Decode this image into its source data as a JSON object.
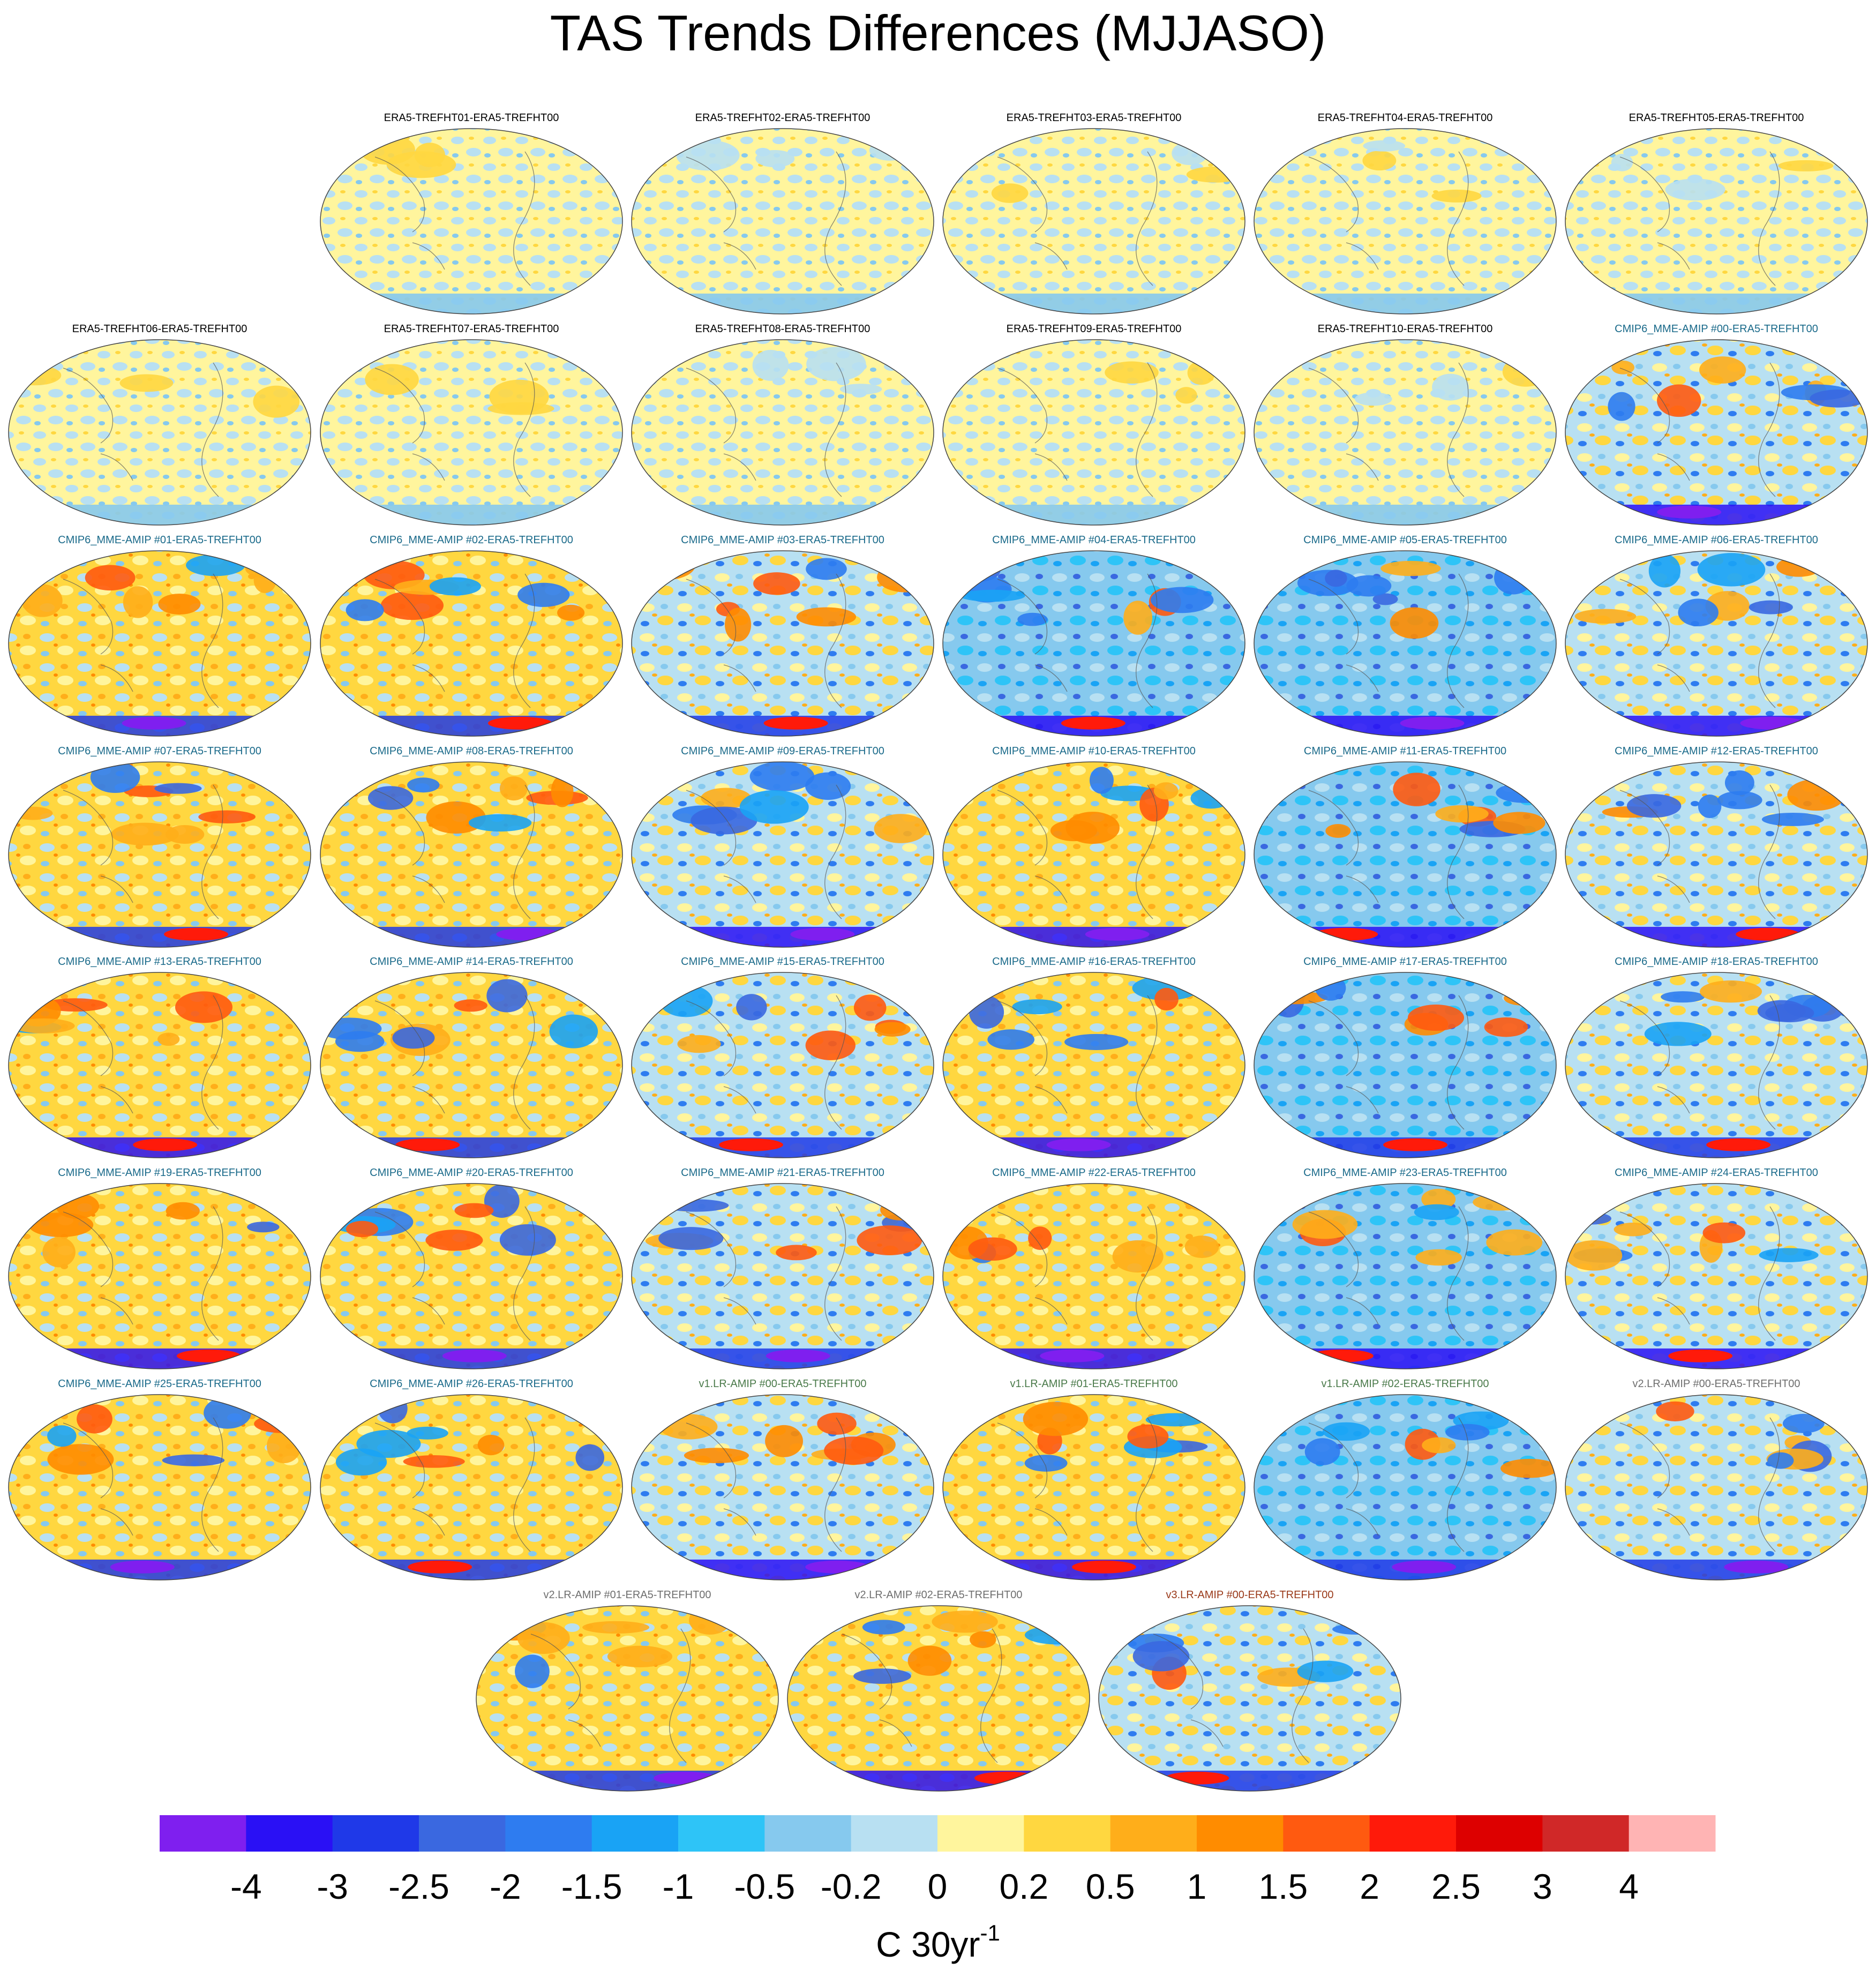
{
  "chart_data": {
    "type": "heatmap",
    "title": "TAS Trends Differences (MJJASO)",
    "panel_kind": "global-map",
    "panels": [
      {
        "title": "ERA5-TREFHT01-ERA5-TREFHT00",
        "group": "era5"
      },
      {
        "title": "ERA5-TREFHT02-ERA5-TREFHT00",
        "group": "era5"
      },
      {
        "title": "ERA5-TREFHT03-ERA5-TREFHT00",
        "group": "era5"
      },
      {
        "title": "ERA5-TREFHT04-ERA5-TREFHT00",
        "group": "era5"
      },
      {
        "title": "ERA5-TREFHT05-ERA5-TREFHT00",
        "group": "era5"
      },
      {
        "title": "ERA5-TREFHT06-ERA5-TREFHT00",
        "group": "era5"
      },
      {
        "title": "ERA5-TREFHT07-ERA5-TREFHT00",
        "group": "era5"
      },
      {
        "title": "ERA5-TREFHT08-ERA5-TREFHT00",
        "group": "era5"
      },
      {
        "title": "ERA5-TREFHT09-ERA5-TREFHT00",
        "group": "era5"
      },
      {
        "title": "ERA5-TREFHT10-ERA5-TREFHT00",
        "group": "era5"
      },
      {
        "title": "CMIP6_MME-AMIP  #00-ERA5-TREFHT00",
        "group": "cmip6"
      },
      {
        "title": "CMIP6_MME-AMIP  #01-ERA5-TREFHT00",
        "group": "cmip6"
      },
      {
        "title": "CMIP6_MME-AMIP  #02-ERA5-TREFHT00",
        "group": "cmip6"
      },
      {
        "title": "CMIP6_MME-AMIP  #03-ERA5-TREFHT00",
        "group": "cmip6"
      },
      {
        "title": "CMIP6_MME-AMIP  #04-ERA5-TREFHT00",
        "group": "cmip6"
      },
      {
        "title": "CMIP6_MME-AMIP  #05-ERA5-TREFHT00",
        "group": "cmip6"
      },
      {
        "title": "CMIP6_MME-AMIP  #06-ERA5-TREFHT00",
        "group": "cmip6"
      },
      {
        "title": "CMIP6_MME-AMIP  #07-ERA5-TREFHT00",
        "group": "cmip6"
      },
      {
        "title": "CMIP6_MME-AMIP  #08-ERA5-TREFHT00",
        "group": "cmip6"
      },
      {
        "title": "CMIP6_MME-AMIP  #09-ERA5-TREFHT00",
        "group": "cmip6"
      },
      {
        "title": "CMIP6_MME-AMIP  #10-ERA5-TREFHT00",
        "group": "cmip6"
      },
      {
        "title": "CMIP6_MME-AMIP  #11-ERA5-TREFHT00",
        "group": "cmip6"
      },
      {
        "title": "CMIP6_MME-AMIP  #12-ERA5-TREFHT00",
        "group": "cmip6"
      },
      {
        "title": "CMIP6_MME-AMIP  #13-ERA5-TREFHT00",
        "group": "cmip6"
      },
      {
        "title": "CMIP6_MME-AMIP  #14-ERA5-TREFHT00",
        "group": "cmip6"
      },
      {
        "title": "CMIP6_MME-AMIP  #15-ERA5-TREFHT00",
        "group": "cmip6"
      },
      {
        "title": "CMIP6_MME-AMIP  #16-ERA5-TREFHT00",
        "group": "cmip6"
      },
      {
        "title": "CMIP6_MME-AMIP  #17-ERA5-TREFHT00",
        "group": "cmip6"
      },
      {
        "title": "CMIP6_MME-AMIP  #18-ERA5-TREFHT00",
        "group": "cmip6"
      },
      {
        "title": "CMIP6_MME-AMIP  #19-ERA5-TREFHT00",
        "group": "cmip6"
      },
      {
        "title": "CMIP6_MME-AMIP  #20-ERA5-TREFHT00",
        "group": "cmip6"
      },
      {
        "title": "CMIP6_MME-AMIP  #21-ERA5-TREFHT00",
        "group": "cmip6"
      },
      {
        "title": "CMIP6_MME-AMIP  #22-ERA5-TREFHT00",
        "group": "cmip6"
      },
      {
        "title": "CMIP6_MME-AMIP  #23-ERA5-TREFHT00",
        "group": "cmip6"
      },
      {
        "title": "CMIP6_MME-AMIP  #24-ERA5-TREFHT00",
        "group": "cmip6"
      },
      {
        "title": "CMIP6_MME-AMIP  #25-ERA5-TREFHT00",
        "group": "cmip6"
      },
      {
        "title": "CMIP6_MME-AMIP  #26-ERA5-TREFHT00",
        "group": "cmip6"
      },
      {
        "title": "v1.LR-AMIP  #00-ERA5-TREFHT00",
        "group": "v1"
      },
      {
        "title": "v1.LR-AMIP  #01-ERA5-TREFHT00",
        "group": "v1"
      },
      {
        "title": "v1.LR-AMIP  #02-ERA5-TREFHT00",
        "group": "v1"
      },
      {
        "title": "v2.LR-AMIP  #00-ERA5-TREFHT00",
        "group": "v2"
      },
      {
        "title": "v2.LR-AMIP  #01-ERA5-TREFHT00",
        "group": "v2"
      },
      {
        "title": "v2.LR-AMIP  #02-ERA5-TREFHT00",
        "group": "v2"
      },
      {
        "title": "v3.LR-AMIP  #00-ERA5-TREFHT00",
        "group": "v3"
      }
    ],
    "title_colors": {
      "era5": "#000000",
      "cmip6": "#1a6a8a",
      "v1": "#4a7a4a",
      "v2": "#6e6e6e",
      "v3": "#9a3a1a"
    },
    "colorbar": {
      "colors": [
        "#7f1fef",
        "#2a10f5",
        "#1f39e8",
        "#3a68e0",
        "#2e7cf0",
        "#19a3f5",
        "#2ec4f7",
        "#86c9ee",
        "#b8e0f2",
        "#fff59d",
        "#ffd740",
        "#ffae1a",
        "#ff8c00",
        "#ff5a10",
        "#ff1a0a",
        "#dd0000",
        "#d02828",
        "#ffb4b4"
      ],
      "tick_labels": [
        "-4",
        "-3",
        "-2.5",
        "-2",
        "-1.5",
        "-1",
        "-0.5",
        "-0.2",
        "0",
        "0.2",
        "0.5",
        "1",
        "1.5",
        "2",
        "2.5",
        "3",
        "4"
      ],
      "units_base": "C 30yr",
      "units_exp": "-1"
    }
  }
}
